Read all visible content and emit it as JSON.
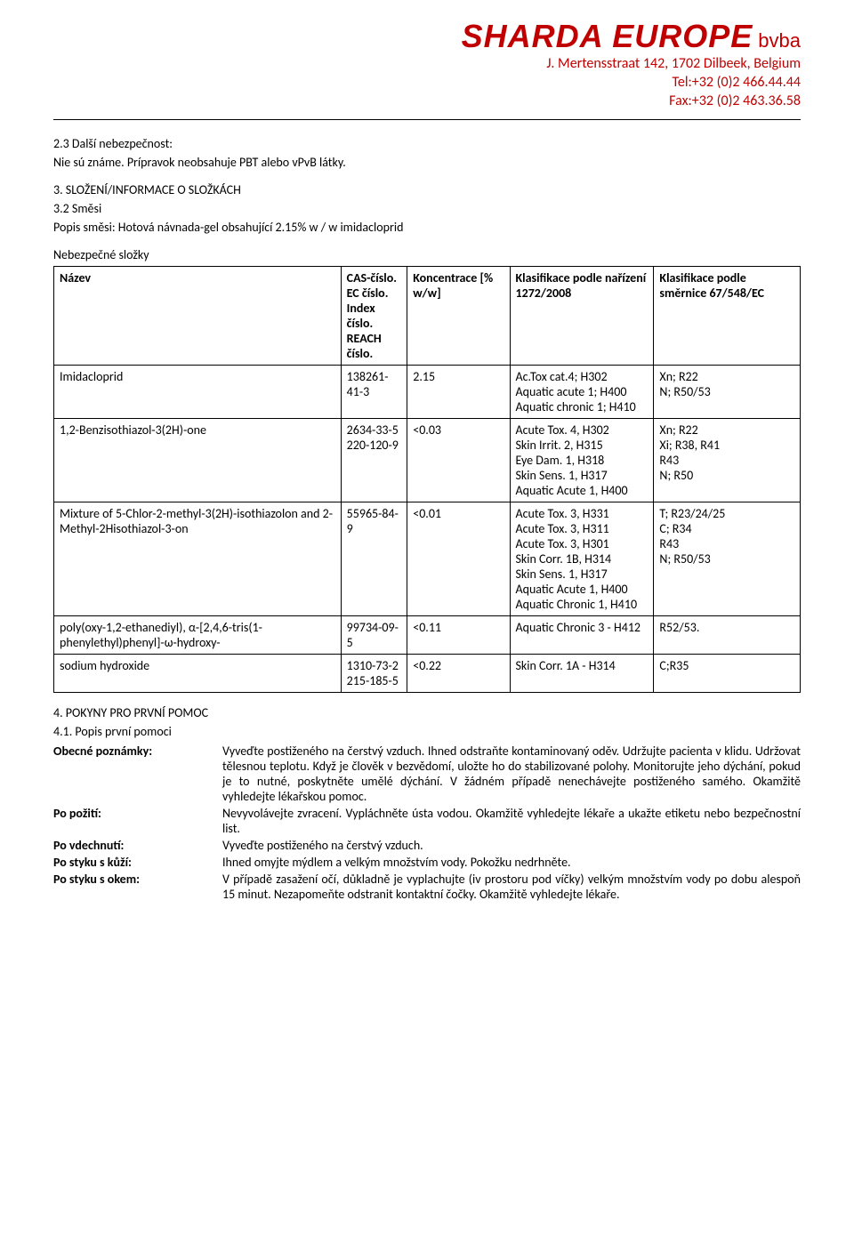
{
  "header": {
    "company_big": "SHARDA EUROPE",
    "company_small": "bvba",
    "address": "J. Mertensstraat 142, 1702 Dilbeek, Belgium",
    "tel": "Tel:+32 (0)2 466.44.44",
    "fax": "Fax:+32 (0)2 463.36.58"
  },
  "section23": {
    "title": "2.3 Další nebezpečnost:",
    "line": "Nie sú známe. Prípravok neobsahuje PBT alebo vPvB látky."
  },
  "section3": {
    "title": "3. SLOŽENÍ/INFORMACE O SLOŽKÁCH",
    "sub": "3.2 Směsi",
    "desc": "Popis směsi: Hotová návnada-gel obsahující 2.15% w / w imidacloprid",
    "hazard": "Nebezpečné složky"
  },
  "table": {
    "headers": {
      "name": "Název",
      "ids": "CAS-číslo.\nEC číslo.\nIndex číslo.\nREACH číslo.",
      "conc": "Koncentrace [% w/w]",
      "clp": "Klasifikace podle nařízení 1272/2008",
      "dsd": "Klasifikace podle směrnice 67/548/EC"
    },
    "rows": [
      {
        "name": "Imidacloprid",
        "ids": "138261-41-3",
        "conc": "2.15",
        "clp": "Ac.Tox cat.4; H302\nAquatic acute 1; H400\nAquatic chronic 1; H410",
        "dsd": "Xn; R22\nN; R50/53"
      },
      {
        "name": "1,2-Benzisothiazol-3(2H)-one",
        "ids": "2634-33-5\n220-120-9",
        "conc": "<0.03",
        "clp": "Acute Tox. 4, H302\nSkin Irrit. 2, H315\nEye Dam. 1, H318\nSkin Sens. 1, H317\nAquatic Acute 1, H400",
        "dsd": "Xn; R22\nXi; R38, R41\nR43\nN; R50"
      },
      {
        "name": "Mixture of 5-Chlor-2-methyl-3(2H)-isothiazolon and 2-Methyl-2Hisothiazol-3-on",
        "ids": "55965-84-9",
        "conc": "<0.01",
        "clp": "Acute Tox. 3, H331\nAcute Tox. 3, H311\nAcute Tox. 3, H301\nSkin Corr. 1B, H314\nSkin Sens. 1, H317\nAquatic Acute 1, H400\nAquatic Chronic 1, H410",
        "dsd": "T; R23/24/25\nC; R34\nR43\nN; R50/53"
      },
      {
        "name": "poly(oxy-1,2-ethanediyl), α-[2,4,6-tris(1-phenylethyl)phenyl]-ω-hydroxy-",
        "ids": "99734-09-5",
        "conc": "<0.11",
        "clp": "Aquatic Chronic 3 - H412",
        "dsd": "R52/53."
      },
      {
        "name": "sodium hydroxide",
        "ids": "1310-73-2\n215-185-5",
        "conc": "<0.22",
        "clp": "Skin Corr. 1A - H314",
        "dsd": "C;R35"
      }
    ]
  },
  "section4": {
    "title": "4. POKYNY PRO PRVNÍ POMOC",
    "sub": "4.1. Popis první pomoci",
    "rows": [
      {
        "label": "Obecné poznámky:",
        "text": "Vyveďte postiženého na čerstvý vzduch. Ihned odstraňte kontaminovaný oděv. Udržujte pacienta v klidu. Udržovat tělesnou teplotu. Když je člověk v bezvědomí, uložte ho do stabilizované polohy. Monitorujte jeho dýchání, pokud je to nutné, poskytněte umělé dýchání. V žádném případě nenechávejte postiženého samého. Okamžitě vyhledejte lékařskou pomoc."
      },
      {
        "label": "Po požití:",
        "text": "Nevyvolávejte zvracení. Vypláchněte ústa vodou. Okamžitě vyhledejte lékaře a ukažte etiketu nebo bezpečnostní list."
      },
      {
        "label": "Po vdechnutí:",
        "text": "Vyveďte postiženého na čerstvý vzduch."
      },
      {
        "label": "Po styku s kůží:",
        "text": "Ihned omyjte mýdlem a velkým množstvím vody. Pokožku nedrhněte."
      },
      {
        "label": "Po styku s okem:",
        "text": "V případě zasažení očí, důkladně je vyplachujte (iv prostoru pod víčky) velkým množstvím vody po dobu alespoň 15 minut. Nezapomeňte odstranit kontaktní čočky. Okamžitě vyhledejte lékaře."
      }
    ]
  }
}
